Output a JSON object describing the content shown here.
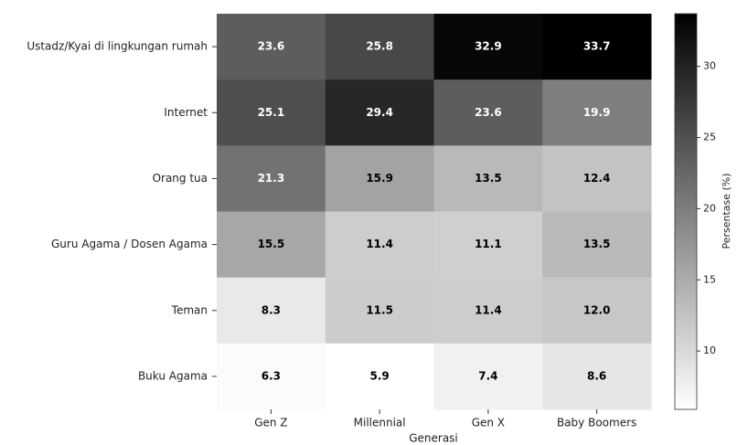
{
  "chart_data": {
    "type": "heatmap",
    "xlabel": "Generasi",
    "colorbar_label": "Persentase (%)",
    "colormap": "gray_r",
    "x": [
      "Gen Z",
      "Millennial",
      "Gen X",
      "Baby Boomers"
    ],
    "categories": [
      "Ustadz/Kyai di lingkungan rumah",
      "Internet",
      "Orang tua",
      "Guru Agama / Dosen Agama",
      "Teman",
      "Buku Agama"
    ],
    "values": [
      [
        23.6,
        25.8,
        32.9,
        33.7
      ],
      [
        25.1,
        29.4,
        23.6,
        19.9
      ],
      [
        21.3,
        15.9,
        13.5,
        12.4
      ],
      [
        15.5,
        11.4,
        11.1,
        13.5
      ],
      [
        8.3,
        11.5,
        11.4,
        12.0
      ],
      [
        6.3,
        5.9,
        7.4,
        8.6
      ]
    ],
    "value_labels": [
      [
        "23.6",
        "25.8",
        "32.9",
        "33.7"
      ],
      [
        "25.1",
        "29.4",
        "23.6",
        "19.9"
      ],
      [
        "21.3",
        "15.9",
        "13.5",
        "12.4"
      ],
      [
        "15.5",
        "11.4",
        "11.1",
        "13.5"
      ],
      [
        "8.3",
        "11.5",
        "11.4",
        "12.0"
      ],
      [
        "6.3",
        "5.9",
        "7.4",
        "8.6"
      ]
    ],
    "clim": [
      5.9,
      33.7
    ],
    "cticks": [
      10,
      15,
      20,
      25,
      30
    ]
  }
}
